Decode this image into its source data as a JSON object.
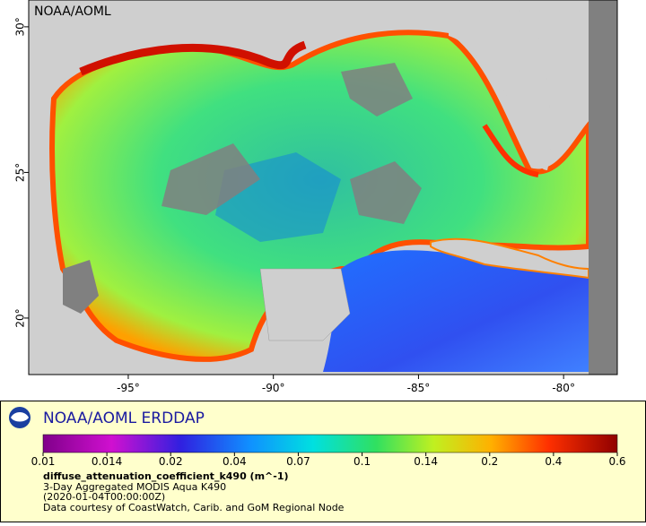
{
  "map": {
    "watermark": "NOAA/AOML",
    "lon_range": [
      -98.43,
      -78.15
    ],
    "lat_range": [
      18.06,
      30.92
    ],
    "lon_ticks": [
      {
        "value": -95,
        "label": "-95°"
      },
      {
        "value": -90,
        "label": "-90°"
      },
      {
        "value": -85,
        "label": "-85°"
      },
      {
        "value": -80,
        "label": "-80°"
      }
    ],
    "lat_ticks": [
      {
        "value": 30,
        "label": "30°"
      },
      {
        "value": 25,
        "label": "25°"
      },
      {
        "value": 20,
        "label": "20°"
      }
    ]
  },
  "legend": {
    "title": "NOAA/AOML ERDDAP",
    "colorbar_ticks": [
      0.01,
      0.014,
      0.02,
      0.04,
      0.07,
      0.1,
      0.14,
      0.2,
      0.4,
      0.6
    ],
    "variable": "diffuse_attenuation_coefficient_k490 (m^-1)",
    "description": "3-Day Aggregated MODIS Aqua K490",
    "time": "(2020-01-04T00:00:00Z)",
    "credit": "Data courtesy of CoastWatch, Carib. and GoM Regional Node"
  }
}
